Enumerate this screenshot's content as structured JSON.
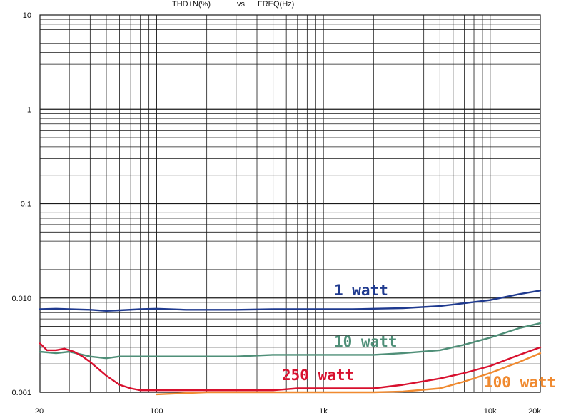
{
  "chart_data": {
    "type": "line",
    "title_parts": [
      "THD+N(%)",
      "vs",
      "FREQ(Hz)"
    ],
    "xlabel": "",
    "ylabel": "",
    "x_scale": "log",
    "y_scale": "log",
    "xlim": [
      20,
      20000
    ],
    "ylim": [
      0.001,
      10
    ],
    "x_ticks": [
      {
        "value": 20,
        "label": "20"
      },
      {
        "value": 100,
        "label": "100"
      },
      {
        "value": 1000,
        "label": "1k"
      },
      {
        "value": 10000,
        "label": "10k"
      },
      {
        "value": 20000,
        "label": "20k"
      }
    ],
    "y_ticks": [
      {
        "value": 10,
        "label": "10"
      },
      {
        "value": 1,
        "label": "1"
      },
      {
        "value": 0.1,
        "label": "0.1"
      },
      {
        "value": 0.01,
        "label": "0.010"
      },
      {
        "value": 0.001,
        "label": "0.001"
      }
    ],
    "grid": true,
    "colors": {
      "grid": "#1a1a1a",
      "text": "#111111",
      "background": "#ffffff"
    },
    "series": [
      {
        "name": "1 watt",
        "color": "#1f3a8f",
        "x": [
          20,
          25,
          30,
          40,
          50,
          60,
          80,
          100,
          150,
          200,
          300,
          500,
          700,
          1000,
          1500,
          2000,
          3000,
          5000,
          7000,
          10000,
          15000,
          20000
        ],
        "y": [
          0.0076,
          0.0077,
          0.0076,
          0.0075,
          0.0073,
          0.0074,
          0.0076,
          0.0077,
          0.0075,
          0.0075,
          0.0075,
          0.0076,
          0.0076,
          0.0076,
          0.0076,
          0.0077,
          0.0078,
          0.0082,
          0.0088,
          0.0095,
          0.011,
          0.012
        ]
      },
      {
        "name": "10 watt",
        "color": "#4f8f78",
        "x": [
          20,
          25,
          30,
          40,
          50,
          60,
          80,
          100,
          150,
          200,
          300,
          500,
          700,
          1000,
          1500,
          2000,
          3000,
          5000,
          7000,
          10000,
          15000,
          20000
        ],
        "y": [
          0.0027,
          0.0026,
          0.0027,
          0.0024,
          0.0023,
          0.0024,
          0.0024,
          0.0024,
          0.0024,
          0.0024,
          0.0024,
          0.0025,
          0.0025,
          0.0025,
          0.0025,
          0.0025,
          0.0026,
          0.0028,
          0.0032,
          0.0038,
          0.0048,
          0.0054
        ]
      },
      {
        "name": "250 watt",
        "color": "#d8102e",
        "x": [
          20,
          22,
          25,
          28,
          32,
          36,
          40,
          50,
          60,
          70,
          80,
          100,
          150,
          200,
          300,
          500,
          700,
          1000,
          1500,
          2000,
          3000,
          5000,
          7000,
          10000,
          15000,
          20000
        ],
        "y": [
          0.0033,
          0.0028,
          0.0028,
          0.0029,
          0.0027,
          0.0024,
          0.0021,
          0.0015,
          0.0012,
          0.0011,
          0.00105,
          0.00105,
          0.00105,
          0.00105,
          0.00105,
          0.00105,
          0.0011,
          0.0011,
          0.0011,
          0.0011,
          0.0012,
          0.0014,
          0.0016,
          0.0019,
          0.0025,
          0.003
        ]
      },
      {
        "name": "100 watt",
        "color": "#f08a30",
        "x": [
          100,
          150,
          200,
          300,
          500,
          700,
          1000,
          1500,
          2000,
          3000,
          5000,
          7000,
          10000,
          15000,
          20000
        ],
        "y": [
          0.00095,
          0.00098,
          0.001,
          0.001,
          0.001,
          0.001,
          0.001,
          0.001,
          0.001,
          0.00102,
          0.0011,
          0.0013,
          0.0016,
          0.0021,
          0.0026
        ]
      }
    ]
  }
}
